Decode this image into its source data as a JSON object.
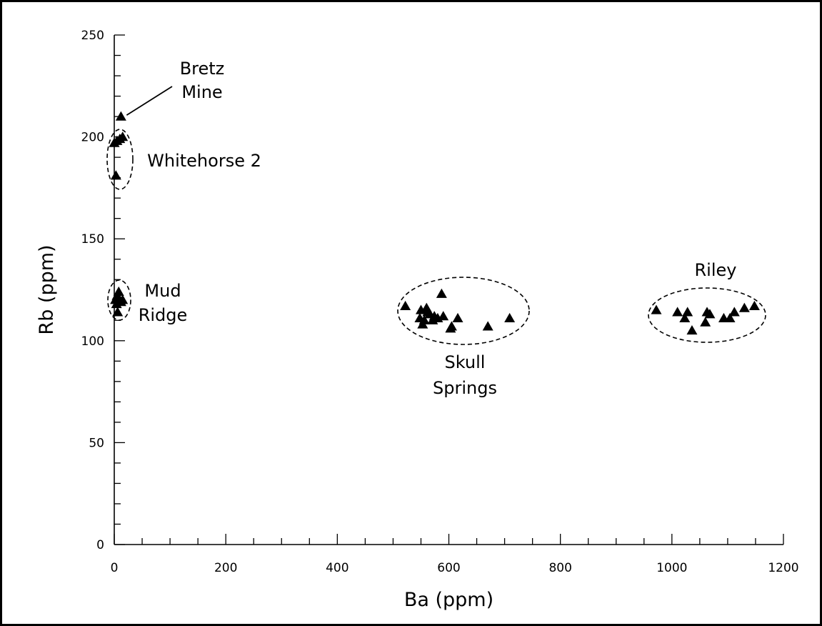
{
  "chart_data": {
    "type": "scatter",
    "title": "",
    "xlabel": "Ba (ppm)",
    "ylabel": "Rb (ppm)",
    "xlim": [
      0,
      1200
    ],
    "ylim": [
      0,
      250
    ],
    "x_ticks": [
      0,
      200,
      400,
      600,
      800,
      1000,
      1200
    ],
    "y_ticks": [
      0,
      50,
      100,
      150,
      200,
      250
    ],
    "x_minor_step": 50,
    "y_minor_step": 10,
    "grid": false,
    "marker": "filled-triangle",
    "marker_color": "#000000",
    "groups": [
      {
        "name": "Bretz Mine",
        "label": [
          "Bretz",
          "Mine"
        ],
        "points": [
          [
            12,
            210
          ]
        ],
        "ellipse": false
      },
      {
        "name": "Whitehorse 2",
        "label": [
          "Whitehorse 2"
        ],
        "points": [
          [
            0,
            197
          ],
          [
            5,
            198
          ],
          [
            10,
            199
          ],
          [
            15,
            200
          ],
          [
            3,
            181
          ]
        ],
        "ellipse": true
      },
      {
        "name": "Mud Ridge",
        "label": [
          "Mud",
          "Ridge"
        ],
        "points": [
          [
            2,
            120
          ],
          [
            5,
            122
          ],
          [
            8,
            124
          ],
          [
            10,
            120
          ],
          [
            4,
            118
          ],
          [
            12,
            119
          ],
          [
            15,
            120
          ],
          [
            6,
            114
          ]
        ],
        "ellipse": true
      },
      {
        "name": "Skull Springs",
        "label": [
          "Skull",
          "Springs"
        ],
        "points": [
          [
            522,
            117
          ],
          [
            548,
            111
          ],
          [
            550,
            115
          ],
          [
            553,
            108
          ],
          [
            556,
            110
          ],
          [
            560,
            116
          ],
          [
            562,
            114
          ],
          [
            566,
            113
          ],
          [
            571,
            110
          ],
          [
            574,
            112
          ],
          [
            580,
            111
          ],
          [
            587,
            123
          ],
          [
            590,
            112
          ],
          [
            603,
            106
          ],
          [
            605,
            107
          ],
          [
            616,
            111
          ],
          [
            670,
            107
          ],
          [
            709,
            111
          ]
        ],
        "ellipse": true
      },
      {
        "name": "Riley",
        "label": [
          "Riley"
        ],
        "points": [
          [
            972,
            115
          ],
          [
            1010,
            114
          ],
          [
            1023,
            111
          ],
          [
            1028,
            114
          ],
          [
            1036,
            105
          ],
          [
            1060,
            109
          ],
          [
            1063,
            114
          ],
          [
            1068,
            113
          ],
          [
            1093,
            111
          ],
          [
            1104,
            111
          ],
          [
            1112,
            114
          ],
          [
            1130,
            116
          ],
          [
            1148,
            117
          ]
        ],
        "ellipse": true
      }
    ]
  }
}
